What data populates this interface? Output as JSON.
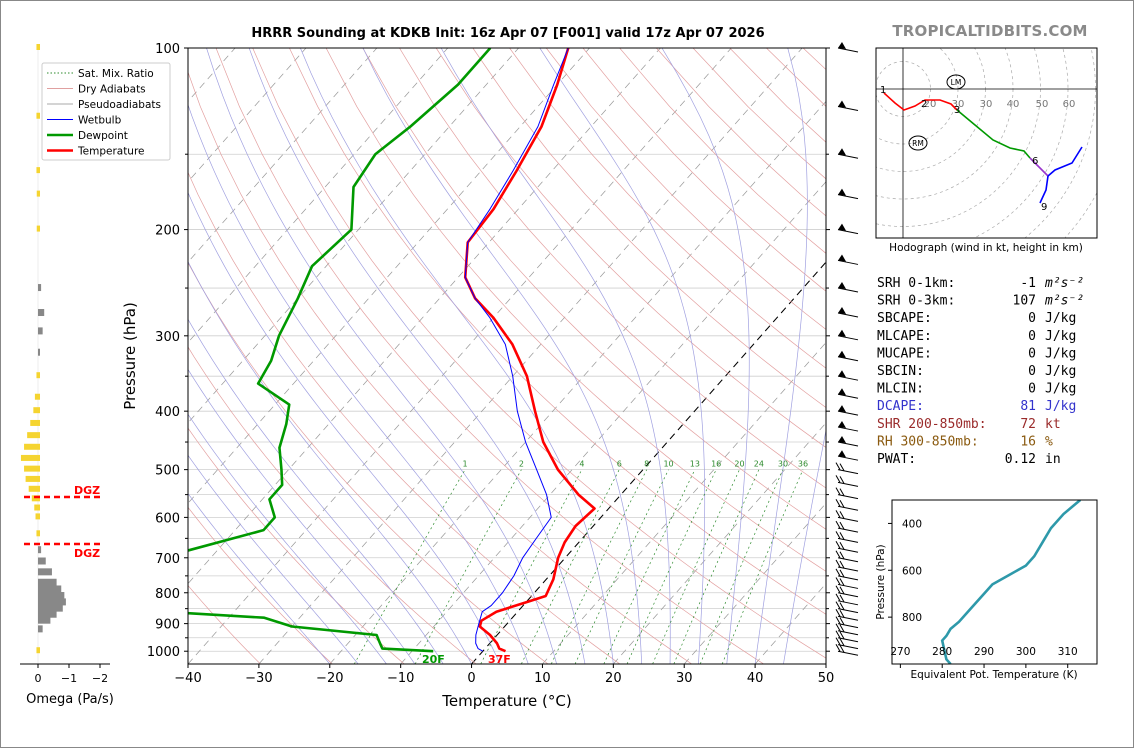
{
  "title": "HRRR Sounding at KDKB Init: 16z Apr 07 [F001] valid 17z Apr 07 2026",
  "brand": "TROPICALTIDBITS.COM",
  "chart_data": [
    {
      "type": "line",
      "name": "skew-t",
      "xlabel": "Temperature (°C)",
      "ylabel": "Pressure (hPa)",
      "xlim": [
        -40,
        50
      ],
      "ylim": [
        1050,
        100
      ],
      "y_scale": "log",
      "x_ticks": [
        "−40",
        "−30",
        "−20",
        "−10",
        "0",
        "10",
        "20",
        "30",
        "40",
        "50"
      ],
      "y_ticks": [
        "100",
        "200",
        "300",
        "400",
        "500",
        "600",
        "700",
        "800",
        "900",
        "1000"
      ],
      "legend": {
        "position": "top-left",
        "items": [
          {
            "label": "Sat. Mix. Ratio",
            "color": "#2e8b2e",
            "style": "dotted"
          },
          {
            "label": "Dry Adiabats",
            "color": "#e0a0a0",
            "style": "solid"
          },
          {
            "label": "Pseudoadiabats",
            "color": "#aaaaaa",
            "style": "solid"
          },
          {
            "label": "Wetbulb",
            "color": "#0000ff",
            "style": "solid"
          },
          {
            "label": "Dewpoint",
            "color": "#009900",
            "style": "solid"
          },
          {
            "label": "Temperature",
            "color": "#ff0000",
            "style": "solid"
          }
        ]
      },
      "mixing_ratio_labels": [
        "1",
        "2",
        "4",
        "6",
        "8",
        "10",
        "13",
        "16",
        "20",
        "24",
        "30",
        "36"
      ],
      "surface_labels": {
        "dewpoint": "20F",
        "temperature": "37F"
      },
      "series": [
        {
          "name": "Temperature",
          "color": "#ff0000",
          "points": [
            [
              100,
              -63
            ],
            [
              115,
              -60
            ],
            [
              135,
              -57
            ],
            [
              160,
              -55
            ],
            [
              185,
              -53.5
            ],
            [
              210,
              -53
            ],
            [
              240,
              -49
            ],
            [
              260,
              -45
            ],
            [
              280,
              -40
            ],
            [
              310,
              -34
            ],
            [
              350,
              -28
            ],
            [
              400,
              -22.5
            ],
            [
              450,
              -17.5
            ],
            [
              500,
              -12
            ],
            [
              550,
              -6
            ],
            [
              580,
              -2
            ],
            [
              620,
              -2.5
            ],
            [
              660,
              -2
            ],
            [
              700,
              -1
            ],
            [
              760,
              1
            ],
            [
              810,
              2
            ],
            [
              830,
              0
            ],
            [
              860,
              -3
            ],
            [
              890,
              -4
            ],
            [
              910,
              -3.5
            ],
            [
              940,
              -1
            ],
            [
              970,
              1
            ],
            [
              990,
              2
            ],
            [
              1000,
              3.2
            ]
          ]
        },
        {
          "name": "Wetbulb",
          "color": "#0000ff",
          "points": [
            [
              100,
              -63
            ],
            [
              115,
              -60.5
            ],
            [
              135,
              -57.5
            ],
            [
              160,
              -55.5
            ],
            [
              185,
              -54
            ],
            [
              210,
              -53
            ],
            [
              240,
              -49
            ],
            [
              260,
              -45
            ],
            [
              280,
              -40.5
            ],
            [
              310,
              -35
            ],
            [
              350,
              -30
            ],
            [
              400,
              -25
            ],
            [
              450,
              -20
            ],
            [
              500,
              -15
            ],
            [
              550,
              -10.5
            ],
            [
              600,
              -7
            ],
            [
              650,
              -6.5
            ],
            [
              700,
              -6
            ],
            [
              750,
              -5
            ],
            [
              800,
              -4.5
            ],
            [
              840,
              -4.5
            ],
            [
              860,
              -5
            ],
            [
              900,
              -4
            ],
            [
              940,
              -3
            ],
            [
              970,
              -2
            ],
            [
              990,
              -1
            ],
            [
              1000,
              0
            ]
          ]
        },
        {
          "name": "Dewpoint",
          "color": "#009900",
          "points": [
            [
              100,
              -74
            ],
            [
              115,
              -74
            ],
            [
              135,
              -75.5
            ],
            [
              150,
              -77
            ],
            [
              170,
              -76
            ],
            [
              200,
              -71
            ],
            [
              230,
              -72
            ],
            [
              260,
              -70
            ],
            [
              300,
              -68
            ],
            [
              330,
              -66
            ],
            [
              360,
              -65
            ],
            [
              390,
              -58
            ],
            [
              420,
              -56
            ],
            [
              460,
              -54
            ],
            [
              500,
              -51
            ],
            [
              530,
              -49
            ],
            [
              560,
              -49
            ],
            [
              600,
              -46
            ],
            [
              630,
              -46
            ],
            [
              680,
              -54
            ],
            [
              720,
              -60
            ],
            [
              760,
              -59
            ],
            [
              800,
              -58
            ],
            [
              830,
              -60
            ],
            [
              860,
              -50
            ],
            [
              880,
              -35
            ],
            [
              910,
              -30
            ],
            [
              940,
              -17
            ],
            [
              960,
              -16
            ],
            [
              980,
              -15
            ],
            [
              990,
              -14.5
            ],
            [
              1000,
              -7
            ]
          ]
        }
      ]
    },
    {
      "type": "line",
      "name": "hodograph",
      "title": "Hodograph (wind in kt, height in km)",
      "ring_labels": [
        "20",
        "30",
        "30",
        "40",
        "50",
        "60"
      ],
      "markers": [
        "LM",
        "RM"
      ],
      "height_labels": [
        "1",
        "2",
        "3",
        "6",
        "9"
      ]
    },
    {
      "type": "line",
      "name": "theta-e",
      "xlabel": "Equivalent Pot. Temperature (K)",
      "ylabel": "Pressure (hPa)",
      "x_ticks": [
        "270",
        "280",
        "290",
        "300",
        "310"
      ],
      "y_ticks": [
        "400",
        "600",
        "800"
      ],
      "xlim": [
        268,
        317
      ],
      "ylim": [
        1000,
        300
      ],
      "points": [
        [
          300,
          313
        ],
        [
          330,
          311
        ],
        [
          360,
          309
        ],
        [
          420,
          306
        ],
        [
          480,
          304
        ],
        [
          540,
          302
        ],
        [
          580,
          300
        ],
        [
          620,
          296
        ],
        [
          660,
          292
        ],
        [
          700,
          290
        ],
        [
          760,
          287
        ],
        [
          820,
          284
        ],
        [
          850,
          282
        ],
        [
          880,
          281
        ],
        [
          900,
          280
        ],
        [
          940,
          280.5
        ],
        [
          980,
          281
        ],
        [
          1000,
          282
        ]
      ]
    },
    {
      "type": "bar",
      "name": "omega",
      "xlabel": "Omega (Pa/s)",
      "x_ticks": [
        "0",
        "−1",
        "−2"
      ],
      "dgz_label": "DGZ",
      "dgz_label_2": "DGZ",
      "values_yellow": [
        [
          100,
          0.05
        ],
        [
          130,
          0.05
        ],
        [
          160,
          0.05
        ],
        [
          175,
          0.04
        ],
        [
          200,
          0.04
        ],
        [
          350,
          0.05
        ],
        [
          380,
          0.1
        ],
        [
          400,
          0.15
        ],
        [
          420,
          0.25
        ],
        [
          440,
          0.35
        ],
        [
          460,
          0.45
        ],
        [
          480,
          0.55
        ],
        [
          500,
          0.45
        ],
        [
          520,
          0.4
        ],
        [
          540,
          0.3
        ],
        [
          560,
          0.2
        ],
        [
          580,
          0.12
        ],
        [
          600,
          0.08
        ],
        [
          640,
          0.05
        ],
        [
          1000,
          0.05
        ]
      ],
      "values_gray": [
        [
          250,
          -0.1
        ],
        [
          275,
          -0.2
        ],
        [
          295,
          -0.15
        ],
        [
          320,
          -0.05
        ],
        [
          680,
          -0.1
        ],
        [
          710,
          -0.25
        ],
        [
          740,
          -0.45
        ],
        [
          770,
          -0.6
        ],
        [
          790,
          -0.75
        ],
        [
          810,
          -0.85
        ],
        [
          830,
          -0.9
        ],
        [
          850,
          -0.8
        ],
        [
          870,
          -0.6
        ],
        [
          890,
          -0.4
        ],
        [
          920,
          -0.15
        ]
      ]
    }
  ],
  "stats": [
    {
      "label": "SRH 0-1km:",
      "value": "-1",
      "unit": "m²s⁻²",
      "color": "#000000"
    },
    {
      "label": "SRH 0-3km:",
      "value": "107",
      "unit": "m²s⁻²",
      "color": "#000000"
    },
    {
      "label": "SBCAPE:",
      "value": "0",
      "unit": "J/kg",
      "color": "#000000"
    },
    {
      "label": "MLCAPE:",
      "value": "0",
      "unit": "J/kg",
      "color": "#000000"
    },
    {
      "label": "MUCAPE:",
      "value": "0",
      "unit": "J/kg",
      "color": "#000000"
    },
    {
      "label": "SBCIN:",
      "value": "0",
      "unit": "J/kg",
      "color": "#000000"
    },
    {
      "label": "MLCIN:",
      "value": "0",
      "unit": "J/kg",
      "color": "#000000"
    },
    {
      "label": "DCAPE:",
      "value": "81",
      "unit": "J/kg",
      "color": "#3333cc"
    },
    {
      "label": "SHR 200-850mb:",
      "value": "72",
      "unit": "kt",
      "color": "#9a2a2a"
    },
    {
      "label": "RH 300-850mb:",
      "value": "16",
      "unit": "%",
      "color": "#8a5a10"
    },
    {
      "label": "PWAT:",
      "value": "0.12",
      "unit": "in",
      "color": "#000000"
    }
  ]
}
